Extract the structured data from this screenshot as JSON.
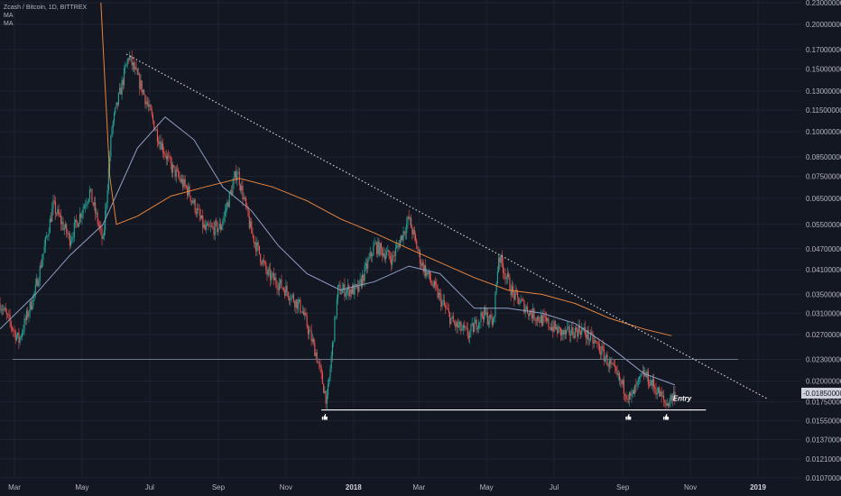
{
  "legend": {
    "title": "Zcash / Bitcoin, 1D, BITTREX",
    "ma1": "MA",
    "ma2": "MA"
  },
  "colors": {
    "background": "#131722",
    "grid": "#1e2330",
    "up": "#26a69a",
    "down": "#ef5350",
    "ma_fast": "#8f9fc4",
    "ma_slow": "#e8843c",
    "trendline": "#d0d0d0",
    "support": "#ffffff",
    "level": "#6a7585",
    "current_bg": "#d1d4dc"
  },
  "chart_data": {
    "type": "candlestick",
    "title": "Zcash / Bitcoin, 1D, BITTREX",
    "y_scale": "log",
    "yticks": [
      "0.23000000",
      "0.20000000",
      "0.17000000",
      "0.15000000",
      "0.13000000",
      "0.11500000",
      "0.10000000",
      "0.08500000",
      "0.07500000",
      "0.06500000",
      "0.05500000",
      "0.04700000",
      "0.04100000",
      "0.03500000",
      "0.03100000",
      "0.02700000",
      "0.02300000",
      "0.02000000",
      "0.01750000",
      "0.01550000",
      "0.01370000",
      "0.01210000",
      "0.01070000"
    ],
    "xticks": [
      {
        "label": "Mar",
        "date": "2017-03-01"
      },
      {
        "label": "May",
        "date": "2017-05-01"
      },
      {
        "label": "Jul",
        "date": "2017-07-01"
      },
      {
        "label": "Sep",
        "date": "2017-09-01"
      },
      {
        "label": "Nov",
        "date": "2017-11-01"
      },
      {
        "label": "2018",
        "date": "2018-01-01",
        "bold": true
      },
      {
        "label": "Mar",
        "date": "2018-03-01"
      },
      {
        "label": "May",
        "date": "2018-05-01"
      },
      {
        "label": "Jul",
        "date": "2018-07-01"
      },
      {
        "label": "Sep",
        "date": "2018-09-01"
      },
      {
        "label": "Nov",
        "date": "2018-11-01"
      },
      {
        "label": "2019",
        "date": "2019-01-01",
        "bold": true
      }
    ],
    "current_price": "0.01850000",
    "price_path": [
      {
        "date": "2017-02-16",
        "price": 0.033
      },
      {
        "date": "2017-03-05",
        "price": 0.026
      },
      {
        "date": "2017-03-20",
        "price": 0.036
      },
      {
        "date": "2017-04-05",
        "price": 0.062
      },
      {
        "date": "2017-04-20",
        "price": 0.05
      },
      {
        "date": "2017-05-08",
        "price": 0.068
      },
      {
        "date": "2017-05-20",
        "price": 0.049
      },
      {
        "date": "2017-05-28",
        "price": 0.103
      },
      {
        "date": "2017-06-12",
        "price": 0.163
      },
      {
        "date": "2017-06-25",
        "price": 0.13
      },
      {
        "date": "2017-07-08",
        "price": 0.098
      },
      {
        "date": "2017-07-20",
        "price": 0.08
      },
      {
        "date": "2017-08-05",
        "price": 0.068
      },
      {
        "date": "2017-08-20",
        "price": 0.053
      },
      {
        "date": "2017-09-03",
        "price": 0.054
      },
      {
        "date": "2017-09-18",
        "price": 0.078
      },
      {
        "date": "2017-10-01",
        "price": 0.052
      },
      {
        "date": "2017-10-15",
        "price": 0.04
      },
      {
        "date": "2017-11-01",
        "price": 0.036
      },
      {
        "date": "2017-11-15",
        "price": 0.032
      },
      {
        "date": "2017-11-28",
        "price": 0.024
      },
      {
        "date": "2017-12-08",
        "price": 0.0175
      },
      {
        "date": "2017-12-18",
        "price": 0.036
      },
      {
        "date": "2018-01-05",
        "price": 0.036
      },
      {
        "date": "2018-01-20",
        "price": 0.048
      },
      {
        "date": "2018-02-05",
        "price": 0.044
      },
      {
        "date": "2018-02-20",
        "price": 0.057
      },
      {
        "date": "2018-03-03",
        "price": 0.043
      },
      {
        "date": "2018-03-18",
        "price": 0.035
      },
      {
        "date": "2018-04-01",
        "price": 0.029
      },
      {
        "date": "2018-04-15",
        "price": 0.027
      },
      {
        "date": "2018-04-28",
        "price": 0.031
      },
      {
        "date": "2018-05-07",
        "price": 0.029
      },
      {
        "date": "2018-05-12",
        "price": 0.045
      },
      {
        "date": "2018-05-25",
        "price": 0.035
      },
      {
        "date": "2018-06-10",
        "price": 0.031
      },
      {
        "date": "2018-06-25",
        "price": 0.029
      },
      {
        "date": "2018-07-10",
        "price": 0.027
      },
      {
        "date": "2018-07-25",
        "price": 0.028
      },
      {
        "date": "2018-08-10",
        "price": 0.025
      },
      {
        "date": "2018-08-25",
        "price": 0.021
      },
      {
        "date": "2018-09-08",
        "price": 0.0178
      },
      {
        "date": "2018-09-20",
        "price": 0.021
      },
      {
        "date": "2018-10-01",
        "price": 0.019
      },
      {
        "date": "2018-10-10",
        "price": 0.0172
      },
      {
        "date": "2018-10-18",
        "price": 0.0185
      }
    ],
    "ma_fast_path": [
      {
        "date": "2017-02-16",
        "price": 0.028
      },
      {
        "date": "2017-03-20",
        "price": 0.035
      },
      {
        "date": "2017-04-20",
        "price": 0.045
      },
      {
        "date": "2017-05-20",
        "price": 0.055
      },
      {
        "date": "2017-06-20",
        "price": 0.09
      },
      {
        "date": "2017-07-15",
        "price": 0.11
      },
      {
        "date": "2017-08-10",
        "price": 0.095
      },
      {
        "date": "2017-09-05",
        "price": 0.07
      },
      {
        "date": "2017-10-01",
        "price": 0.06
      },
      {
        "date": "2017-10-25",
        "price": 0.048
      },
      {
        "date": "2017-11-20",
        "price": 0.04
      },
      {
        "date": "2017-12-20",
        "price": 0.036
      },
      {
        "date": "2018-01-20",
        "price": 0.038
      },
      {
        "date": "2018-02-20",
        "price": 0.042
      },
      {
        "date": "2018-03-20",
        "price": 0.04
      },
      {
        "date": "2018-04-20",
        "price": 0.032
      },
      {
        "date": "2018-05-20",
        "price": 0.032
      },
      {
        "date": "2018-06-20",
        "price": 0.031
      },
      {
        "date": "2018-07-20",
        "price": 0.029
      },
      {
        "date": "2018-08-20",
        "price": 0.025
      },
      {
        "date": "2018-09-20",
        "price": 0.021
      },
      {
        "date": "2018-10-18",
        "price": 0.0195
      }
    ],
    "ma_slow_path": [
      {
        "date": "2017-05-18",
        "price": 0.23
      },
      {
        "date": "2017-05-26",
        "price": 0.075
      },
      {
        "date": "2017-06-01",
        "price": 0.055
      },
      {
        "date": "2017-06-20",
        "price": 0.058
      },
      {
        "date": "2017-07-20",
        "price": 0.066
      },
      {
        "date": "2017-08-20",
        "price": 0.07
      },
      {
        "date": "2017-09-20",
        "price": 0.074
      },
      {
        "date": "2017-10-20",
        "price": 0.07
      },
      {
        "date": "2017-11-20",
        "price": 0.064
      },
      {
        "date": "2017-12-20",
        "price": 0.057
      },
      {
        "date": "2018-01-20",
        "price": 0.052
      },
      {
        "date": "2018-02-20",
        "price": 0.047
      },
      {
        "date": "2018-03-20",
        "price": 0.043
      },
      {
        "date": "2018-04-20",
        "price": 0.039
      },
      {
        "date": "2018-05-20",
        "price": 0.036
      },
      {
        "date": "2018-06-20",
        "price": 0.035
      },
      {
        "date": "2018-07-20",
        "price": 0.033
      },
      {
        "date": "2018-08-20",
        "price": 0.03
      },
      {
        "date": "2018-09-20",
        "price": 0.028
      },
      {
        "date": "2018-10-15",
        "price": 0.0268
      }
    ],
    "trendline": {
      "start": {
        "date": "2017-06-10",
        "price": 0.165
      },
      "end": {
        "date": "2019-01-10",
        "price": 0.0178
      }
    },
    "horizontal_level": {
      "price": 0.023
    },
    "support_line": {
      "price": 0.0166,
      "start": "2017-12-03",
      "end": "2018-11-15"
    },
    "markers": [
      {
        "date": "2017-12-06",
        "price": 0.0159
      },
      {
        "date": "2018-09-06",
        "price": 0.0159
      },
      {
        "date": "2018-10-10",
        "price": 0.0159
      }
    ],
    "annotation": {
      "text": "Entry",
      "date": "2018-10-13",
      "price": 0.0176
    }
  }
}
